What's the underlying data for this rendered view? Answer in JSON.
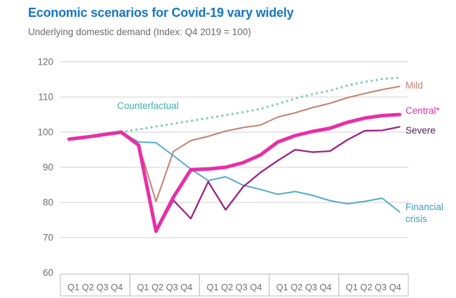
{
  "title": "Economic scenarios for Covid-19 vary widely",
  "subtitle": "Underlying domestic demand (Index: Q4 2019 = 100)",
  "colors": {
    "title": "#1676c2",
    "subtitle": "#6b6b6b",
    "axis_text": "#6f6f6f",
    "gridline": "#dadada",
    "axis_box_border": "#c6c6c6",
    "background": "#ffffff"
  },
  "chart_data": {
    "type": "line",
    "title": "Economic scenarios for Covid-19 vary widely",
    "subtitle": "Underlying domestic demand (Index: Q4 2019 = 100)",
    "x_axis": {
      "quarter_labels": [
        "Q1",
        "Q2",
        "Q3",
        "Q4"
      ],
      "num_year_groups": 5,
      "group_label_text": "Q1 Q2 Q3 Q4"
    },
    "y_axis": {
      "ticks": [
        120,
        110,
        100,
        90,
        80,
        70,
        60
      ],
      "min": 60,
      "max": 120,
      "grid": true
    },
    "legend_position": "end-of-line-labels",
    "series": [
      {
        "name": "counterfactual",
        "label": "Counterfactual",
        "color": "#8ccfbc",
        "label_color": "#41b1a0",
        "style": "dotted",
        "width": 3.4,
        "values": [
          null,
          null,
          null,
          100,
          100.8,
          101.6,
          102.4,
          103.2,
          104,
          104.8,
          105.7,
          106.6,
          108,
          109.6,
          110.8,
          111.8,
          113.3,
          114.3,
          115.1,
          115.5
        ]
      },
      {
        "name": "mild",
        "label": "Mild",
        "color": "#c5806f",
        "label_color": "#c5806f",
        "style": "solid",
        "width": 2,
        "values": [
          98,
          98.6,
          99.3,
          100,
          96.5,
          80.3,
          94.5,
          97.6,
          98.8,
          100.3,
          101.3,
          102,
          104.3,
          105.5,
          107,
          108.2,
          109.8,
          111,
          112.1,
          113
        ]
      },
      {
        "name": "financial-crisis",
        "label": "Financial crisis",
        "color": "#54abc8",
        "label_color": "#3d9ec2",
        "style": "solid",
        "width": 2,
        "values": [
          98,
          98.6,
          99.3,
          100,
          97.2,
          97,
          93.3,
          89.5,
          86.2,
          87.3,
          84.9,
          83.7,
          82.3,
          83.1,
          82,
          80.5,
          79.6,
          80.3,
          81.2,
          77.3
        ]
      },
      {
        "name": "severe",
        "label": "Severe",
        "color": "#9c2382",
        "label_color": "#472155",
        "style": "solid",
        "width": 2.3,
        "values": [
          98,
          98.6,
          99.3,
          100,
          96.3,
          71.5,
          80.6,
          75.4,
          85.9,
          77.9,
          84.4,
          88.5,
          91.9,
          95,
          94.3,
          94.6,
          97.8,
          100.4,
          100.5,
          101.5
        ]
      },
      {
        "name": "central",
        "label": "Central*",
        "color": "#e72fa7",
        "label_color": "#e72fa7",
        "style": "solid",
        "width": 5,
        "values": [
          98,
          98.6,
          99.3,
          100,
          96.3,
          71.8,
          81.5,
          89.3,
          89.5,
          90,
          91.3,
          93.5,
          97.2,
          99,
          100.2,
          101.1,
          102.8,
          104,
          104.7,
          105
        ]
      }
    ]
  }
}
